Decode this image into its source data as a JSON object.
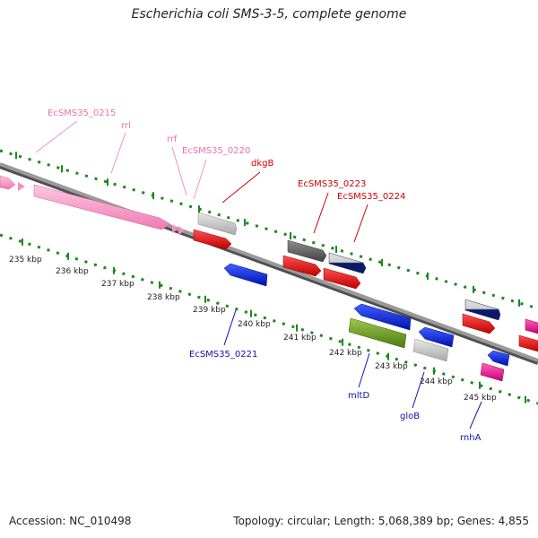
{
  "title": "Escherichia coli SMS-3-5, complete genome",
  "footer": {
    "accession_label": "Accession:",
    "accession": "NC_010498",
    "topology_label": "Topology:",
    "topology": "circular",
    "length_label": "Length:",
    "length": "5,068,389 bp",
    "genes_label": "Genes:",
    "genes": "4,855"
  },
  "scale_unit": "kbp",
  "ticks": [
    "235 kbp",
    "236 kbp",
    "237 kbp",
    "238 kbp",
    "239 kbp",
    "240 kbp",
    "241 kbp",
    "242 kbp",
    "243 kbp",
    "244 kbp",
    "245 kbp"
  ],
  "colors": {
    "rrna": "#f48fc0",
    "gene_forward": "#e8001c",
    "gene_reverse": "#0a1ee8",
    "pseudo_gray": "#c8c8c8",
    "dark_gray": "#606060",
    "navy": "#0a1a6a",
    "olive": "#6a9a20",
    "magenta": "#f0209a",
    "label_pink": "#f070a8",
    "label_red": "#d00000",
    "label_blue": "#1010b0",
    "tick_green": "#1a8a1a",
    "backbone": "#808080"
  },
  "labels": {
    "EcSMS35_0215": "EcSMS35_0215",
    "rrl": "rrl",
    "rrf": "rrf",
    "EcSMS35_0220": "EcSMS35_0220",
    "dkgB": "dkgB",
    "EcSMS35_0223": "EcSMS35_0223",
    "EcSMS35_0224": "EcSMS35_0224",
    "EcSMS35_0221": "EcSMS35_0221",
    "mltD": "mltD",
    "gloB": "gloB",
    "rnhA": "rnhA"
  }
}
